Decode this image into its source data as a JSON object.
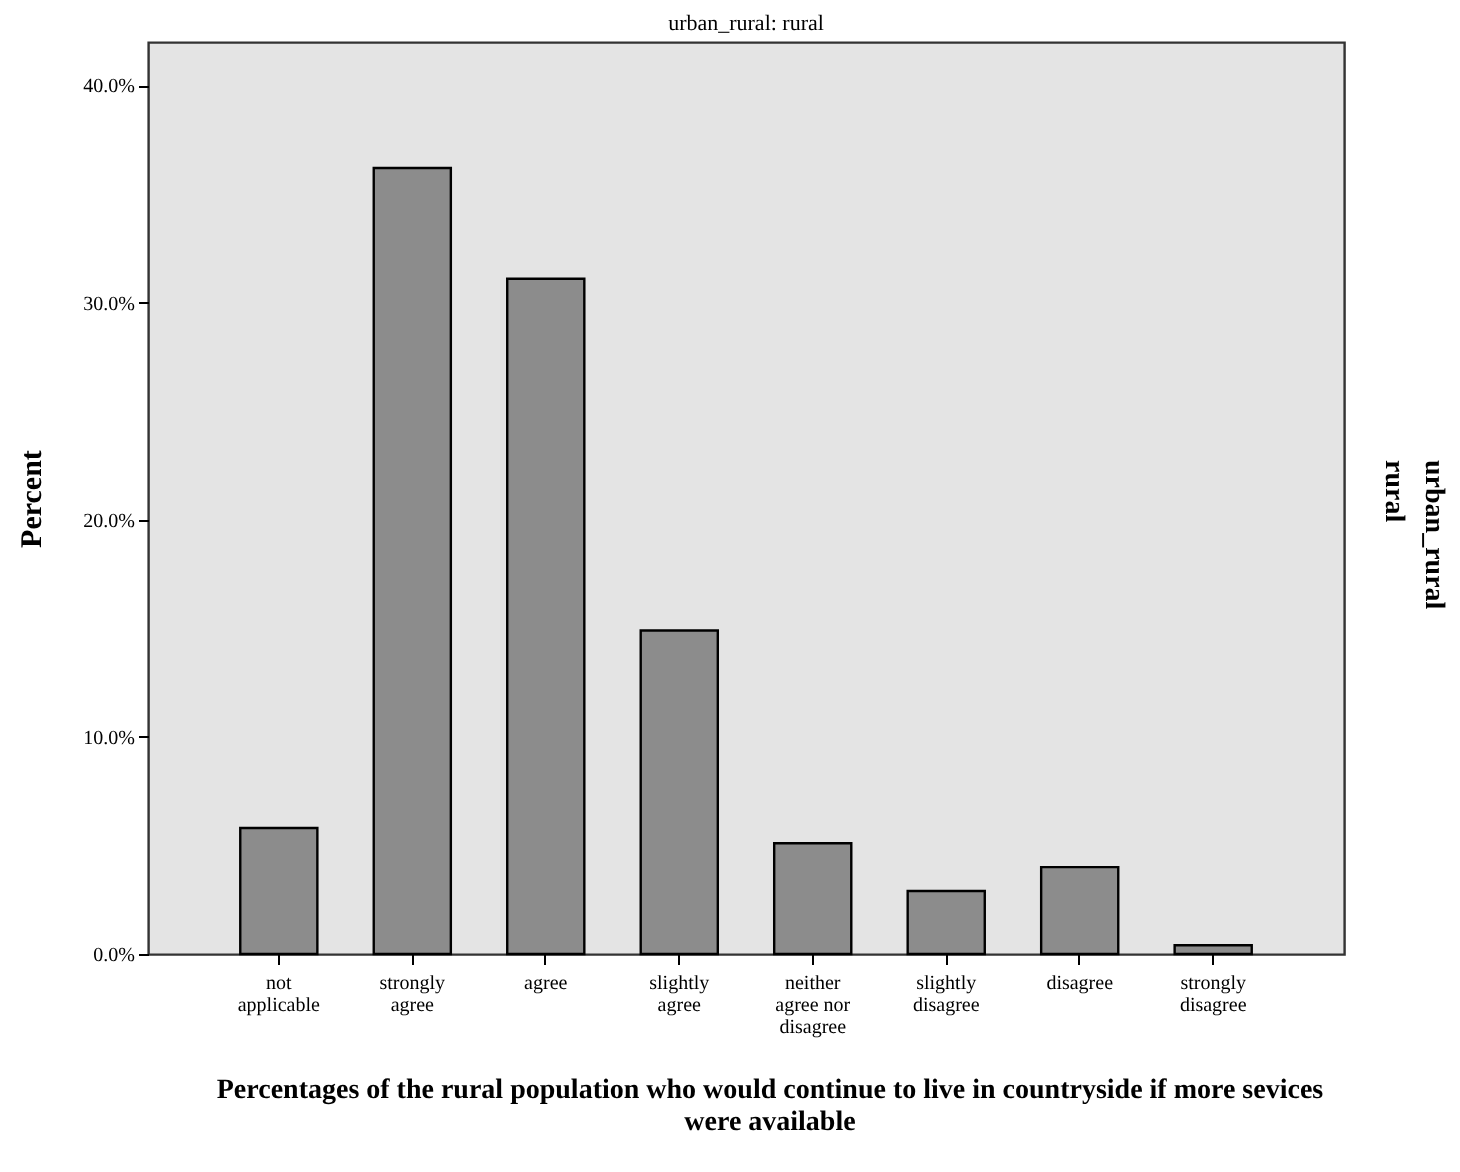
{
  "chart_data": {
    "type": "bar",
    "title": "urban_rural: rural",
    "xlabel": "Percentages of the rural population who would continue to live in countryside if more sevices were available",
    "ylabel": "Percent",
    "y2label": "urban_rural",
    "annotations": [
      "rural"
    ],
    "categories": [
      "not applicable",
      "strongly agree",
      "agree",
      "slightly agree",
      "neither agree nor disagree",
      "slightly disagree",
      "disagree",
      "strongly disagree"
    ],
    "values": [
      5.8,
      36.2,
      31.1,
      14.9,
      5.1,
      2.9,
      4.0,
      0.4
    ],
    "color": "#8c8c8c",
    "ylim": [
      0,
      42
    ],
    "yticks": [
      {
        "value": 0,
        "label": "0.0%"
      },
      {
        "value": 10,
        "label": "10.0%"
      },
      {
        "value": 20,
        "label": "20.0%"
      },
      {
        "value": 30,
        "label": "30.0%"
      },
      {
        "value": 40,
        "label": "40.0%"
      }
    ],
    "grid": false
  }
}
